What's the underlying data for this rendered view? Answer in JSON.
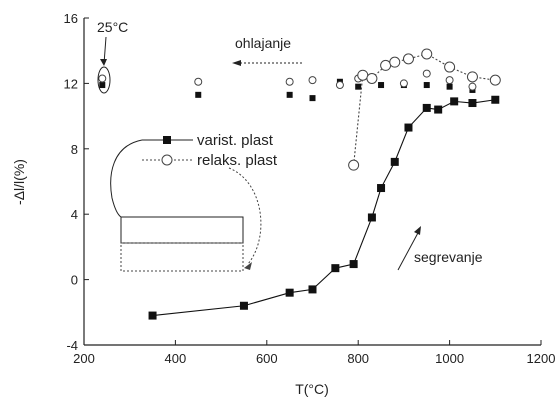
{
  "chart_data": {
    "type": "line",
    "xlabel": "T(°C)",
    "ylabel": "-Δl/l(%)",
    "xlim": [
      200,
      1200
    ],
    "ylim": [
      -4,
      16
    ],
    "xticks": [
      200,
      400,
      600,
      800,
      1000,
      1200
    ],
    "yticks": [
      -4,
      0,
      4,
      8,
      12,
      16
    ],
    "grid": false,
    "legend_position": "center-left",
    "series": [
      {
        "name": "varist. plast",
        "marker": "filled-square",
        "color": "#111111",
        "points": [
          [
            350,
            -2.2
          ],
          [
            550,
            -1.6
          ],
          [
            650,
            -0.8
          ],
          [
            700,
            -0.6
          ],
          [
            750,
            0.7
          ],
          [
            790,
            0.95
          ],
          [
            830,
            3.8
          ],
          [
            850,
            5.6
          ],
          [
            880,
            7.2
          ],
          [
            910,
            9.3
          ],
          [
            950,
            10.5
          ],
          [
            975,
            10.4
          ],
          [
            1010,
            10.9
          ],
          [
            1050,
            10.8
          ],
          [
            1100,
            11.0
          ]
        ],
        "cooling_points": [
          [
            240,
            11.9
          ],
          [
            450,
            11.3
          ],
          [
            650,
            11.3
          ],
          [
            700,
            11.1
          ],
          [
            760,
            12.1
          ],
          [
            800,
            11.8
          ],
          [
            850,
            11.9
          ],
          [
            900,
            11.9
          ],
          [
            950,
            11.9
          ],
          [
            1000,
            11.8
          ],
          [
            1050,
            11.6
          ]
        ]
      },
      {
        "name": "relaks. plast",
        "marker": "open-circle",
        "color": "#444444",
        "points": [
          [
            790,
            7.0
          ],
          [
            810,
            12.5
          ],
          [
            830,
            12.3
          ],
          [
            860,
            13.1
          ],
          [
            880,
            13.3
          ],
          [
            910,
            13.5
          ],
          [
            950,
            13.8
          ],
          [
            1000,
            13.0
          ],
          [
            1050,
            12.4
          ],
          [
            1100,
            12.2
          ]
        ],
        "cooling_points": [
          [
            240,
            12.3
          ],
          [
            450,
            12.1
          ],
          [
            650,
            12.1
          ],
          [
            700,
            12.2
          ],
          [
            760,
            11.9
          ],
          [
            800,
            12.3
          ],
          [
            900,
            12.0
          ],
          [
            950,
            12.6
          ],
          [
            1000,
            12.2
          ],
          [
            1050,
            11.8
          ]
        ]
      }
    ],
    "annotations": {
      "temp_label": "25°C",
      "cooling_label": "ohlajanje",
      "heating_label": "segrevanje"
    }
  }
}
